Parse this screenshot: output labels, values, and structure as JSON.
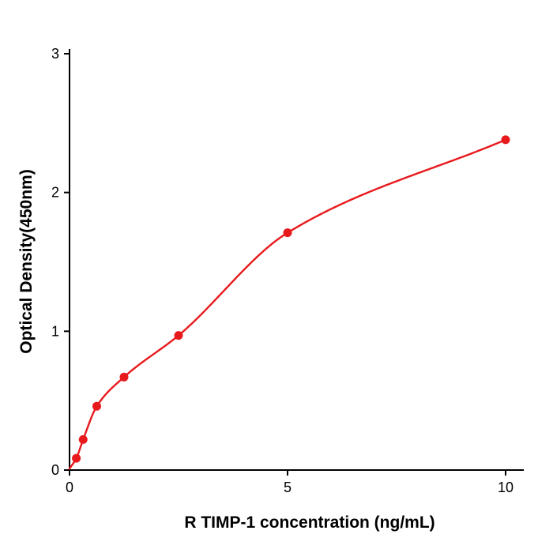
{
  "chart_data": {
    "type": "scatter",
    "title": "",
    "xlabel": "R  TIMP-1 concentration (ng/mL)",
    "ylabel": "Optical Density(450nm)",
    "x": [
      0.156,
      0.3125,
      0.625,
      1.25,
      2.5,
      5,
      10
    ],
    "y": [
      0.085,
      0.22,
      0.46,
      0.67,
      0.97,
      1.71,
      2.38
    ],
    "curve_start": {
      "x": 0,
      "y": 0.01
    },
    "xlim": [
      0,
      10.4
    ],
    "ylim": [
      0,
      3
    ],
    "x_ticks": [
      0,
      5,
      10
    ],
    "y_ticks": [
      0,
      1,
      2,
      3
    ],
    "grid": false,
    "legend": null,
    "point_color": "#e8191c",
    "line_color": "#e8191c",
    "axis_color": "#000000"
  }
}
